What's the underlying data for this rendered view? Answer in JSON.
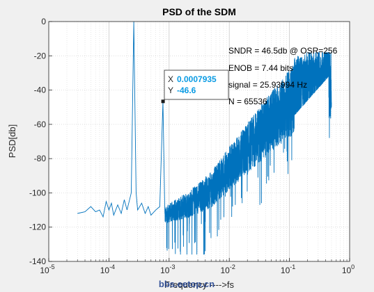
{
  "chart_data": {
    "type": "line",
    "title": "PSD of the SDM",
    "xlabel": "Frequency ---->fs",
    "ylabel": "PSD[db]",
    "xscale": "log",
    "xlim": [
      1e-05,
      1
    ],
    "ylim": [
      -140,
      0
    ],
    "x_ticks": [
      1e-05,
      0.0001,
      0.001,
      0.01,
      0.1,
      1
    ],
    "x_tick_labels": [
      {
        "base": "10",
        "exp": "-5"
      },
      {
        "base": "10",
        "exp": "-4"
      },
      {
        "base": "10",
        "exp": "-3"
      },
      {
        "base": "10",
        "exp": "-2"
      },
      {
        "base": "10",
        "exp": "-1"
      },
      {
        "base": "10",
        "exp": "0"
      }
    ],
    "y_ticks": [
      0,
      -20,
      -40,
      -60,
      -80,
      -100,
      -120,
      -140
    ],
    "y_tick_labels": [
      "0",
      "-20",
      "-40",
      "-60",
      "-80",
      "-100",
      "-120",
      "-140"
    ],
    "grid": true,
    "series_color": "#0072bd",
    "series": [
      {
        "description_points": [
          [
            3e-05,
            -112
          ],
          [
            4e-05,
            -111
          ],
          [
            5e-05,
            -108
          ],
          [
            6e-05,
            -111
          ],
          [
            7e-05,
            -110
          ],
          [
            8e-05,
            -114
          ],
          [
            9e-05,
            -105
          ],
          [
            0.0001,
            -110
          ],
          [
            0.00011,
            -106
          ],
          [
            0.00012,
            -113
          ],
          [
            0.00014,
            -107
          ],
          [
            0.00016,
            -112
          ],
          [
            0.00018,
            -104
          ],
          [
            0.0002,
            -110
          ],
          [
            0.000235,
            -100
          ],
          [
            0.000259,
            0
          ],
          [
            0.000283,
            -100
          ],
          [
            0.0003,
            -110
          ],
          [
            0.00035,
            -106
          ],
          [
            0.0004,
            -112
          ],
          [
            0.00045,
            -108
          ],
          [
            0.0005,
            -113
          ],
          [
            0.0006,
            -110
          ],
          [
            0.0007,
            -108
          ],
          [
            0.00079,
            -46.6
          ],
          [
            0.00085,
            -112
          ],
          [
            0.001,
            -110
          ],
          [
            0.002,
            -105
          ],
          [
            0.005,
            -95
          ],
          [
            0.01,
            -82
          ],
          [
            0.03,
            -62
          ],
          [
            0.1,
            -42
          ],
          [
            0.2,
            -30
          ],
          [
            0.3,
            -25
          ],
          [
            0.5,
            -28
          ]
        ]
      }
    ],
    "annotations": [
      "SNDR = 46.5db @ OSR=256",
      "ENOB = 7.44 bits",
      "signal = 25.93994 Hz",
      "N = 65536"
    ],
    "datatip": {
      "x_label": "X",
      "x_value": "0.0007935",
      "y_label": "Y",
      "y_value": "-46.6",
      "x": 0.0007935,
      "y": -46.6
    }
  },
  "watermark": "bbs.eetop.cn"
}
